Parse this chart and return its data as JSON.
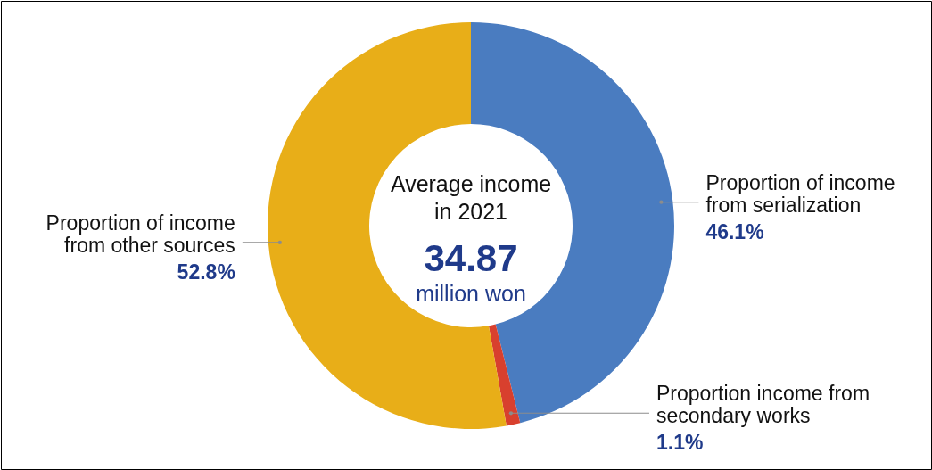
{
  "chart_data": {
    "type": "donut",
    "categories": [
      "Proportion of income from serialization",
      "Proportion income from secondary works",
      "Proportion of income from other sources"
    ],
    "values": [
      46.1,
      1.1,
      52.8
    ],
    "colors": [
      "#4a7cc0",
      "#d8402e",
      "#e8ae18"
    ],
    "value_labels": [
      "46.1%",
      "1.1%",
      "52.8%"
    ],
    "annotations": [
      "Average income in 2021",
      "34.87",
      "million won"
    ]
  }
}
